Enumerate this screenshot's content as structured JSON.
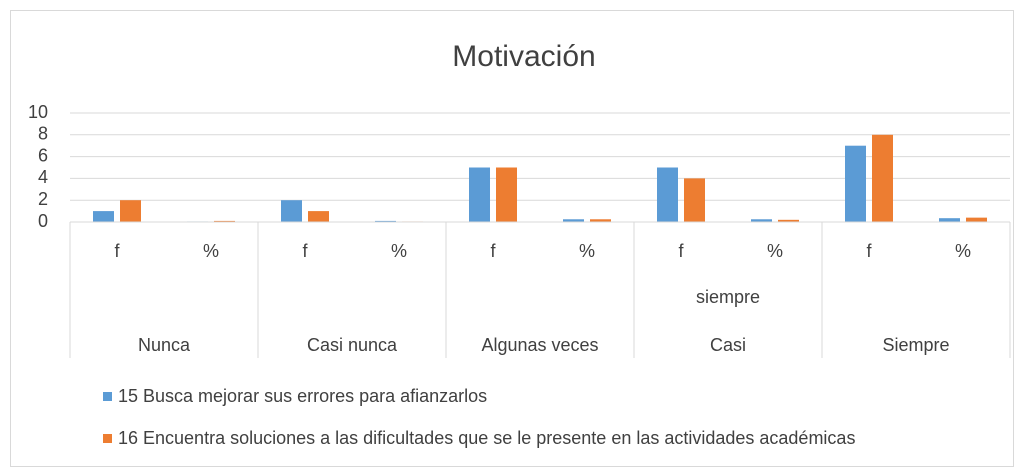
{
  "chart_data": {
    "type": "bar",
    "title": "Motivación",
    "categories": [
      "f",
      "%",
      "f",
      "%",
      "f",
      "%",
      "f",
      "%",
      "f",
      "%"
    ],
    "groups": [
      [
        "Nunca"
      ],
      [
        "Casi nunca"
      ],
      [
        "Algunas veces"
      ],
      [
        "Casi",
        "siempre"
      ],
      [
        "Siempre"
      ]
    ],
    "series": [
      {
        "name": "15 Busca mejorar sus errores para afianzarlos",
        "color": "#5b9bd5",
        "values": [
          1,
          0.05,
          2,
          0.1,
          5,
          0.25,
          5,
          0.25,
          7,
          0.35
        ]
      },
      {
        "name": "16 Encuentra soluciones a las dificultades que se le presente en las actividades académicas",
        "color": "#ed7d31",
        "values": [
          2,
          0.1,
          1,
          0.05,
          5,
          0.25,
          4,
          0.2,
          8,
          0.4
        ]
      }
    ],
    "ylim": [
      0,
      10
    ],
    "yticks": [
      0,
      2,
      4,
      6,
      8,
      10
    ],
    "grid": true,
    "legend": "bottom"
  }
}
